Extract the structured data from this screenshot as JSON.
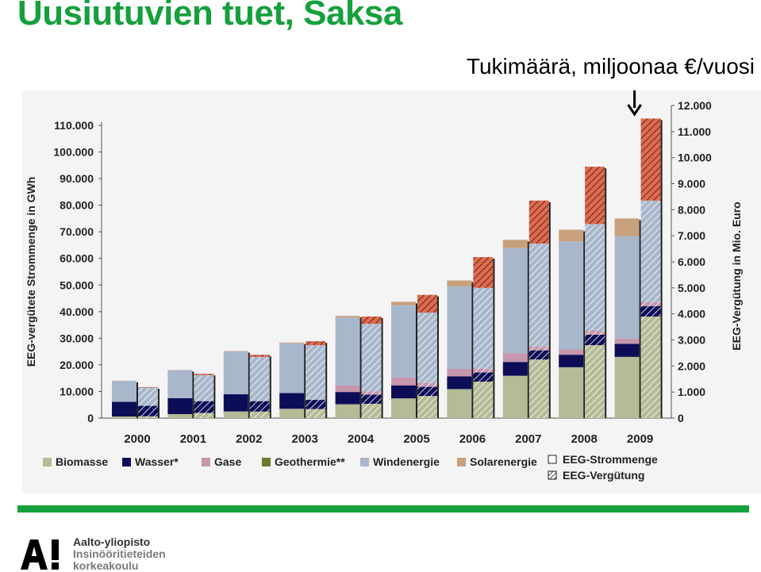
{
  "header": {
    "title": "Uusiutuvien tuet, Saksa",
    "subtitle": "Tukimäärä, miljoonaa €/vuosi"
  },
  "footer": {
    "brand_line1": "Aalto-yliopisto",
    "brand_line2": "Insinööritieteiden",
    "brand_line3": "korkeakoulu",
    "logo_text": "A!"
  },
  "colors": {
    "accent_green": "#15a03c",
    "Biomasse": "#b4bb96",
    "Wasser*": "#0d0d57",
    "Gase": "#c596ac",
    "Geothermie**": "#6b7a2c",
    "Windenergie": "#a9b7cc",
    "Solarenergie": "#c9a07c",
    "Solar_hatch": "#e06a4e"
  },
  "chart_data": {
    "type": "bar",
    "categories": [
      "2000",
      "2001",
      "2002",
      "2003",
      "2004",
      "2005",
      "2006",
      "2007",
      "2008",
      "2009"
    ],
    "ylabel_left": "EEG-vergütete Strommenge in GWh",
    "ylabel_right": "EEG-Vergütung in Mio. Euro",
    "ylim_left": [
      0,
      110000
    ],
    "ylim_right": [
      0,
      12000
    ],
    "yticks_left": [
      "0",
      "10.000",
      "20.000",
      "30.000",
      "40.000",
      "50.000",
      "60.000",
      "70.000",
      "80.000",
      "90.000",
      "100.000",
      "110.000"
    ],
    "yticks_right": [
      "0",
      "1.000",
      "2.000",
      "3.000",
      "4.000",
      "5.000",
      "6.000",
      "7.000",
      "8.000",
      "9.000",
      "10.000",
      "11.000",
      "12.000"
    ],
    "bar_types": [
      "EEG-Strommenge",
      "EEG-Vergütung"
    ],
    "series_order": [
      "Biomasse",
      "Wasser*",
      "Gase",
      "Geothermie**",
      "Windenergie",
      "Solarenergie"
    ],
    "strommenge_gwh": {
      "Biomasse": [
        600,
        1500,
        2500,
        3500,
        5200,
        7400,
        10900,
        15900,
        19100,
        23000
      ],
      "Wasser*": [
        5500,
        6000,
        6500,
        5900,
        4600,
        4900,
        4800,
        5200,
        4700,
        4900
      ],
      "Gase": [
        0,
        0,
        0,
        0,
        2500,
        2900,
        2800,
        3300,
        2000,
        2000
      ],
      "Geothermie**": [
        0,
        0,
        0,
        0,
        0,
        0,
        0,
        0,
        0,
        0
      ],
      "Windenergie": [
        7900,
        10500,
        16000,
        18700,
        25500,
        27200,
        31000,
        39500,
        40600,
        38500
      ],
      "Solarenergie": [
        50,
        100,
        200,
        300,
        600,
        1300,
        2200,
        3100,
        4400,
        6600
      ]
    },
    "verguetung_mio_eur": {
      "Biomasse": [
        70,
        200,
        250,
        350,
        550,
        850,
        1400,
        2250,
        2800,
        3900
      ],
      "Wasser*": [
        400,
        450,
        400,
        350,
        350,
        350,
        350,
        350,
        400,
        400
      ],
      "Gase": [
        0,
        0,
        0,
        0,
        120,
        150,
        150,
        150,
        150,
        150
      ],
      "Geothermie**": [
        0,
        0,
        0,
        0,
        0,
        0,
        0,
        0,
        0,
        0
      ],
      "Windenergie": [
        700,
        1000,
        1700,
        2100,
        2600,
        2700,
        3100,
        3950,
        4100,
        3900
      ],
      "Solarenergie": [
        20,
        50,
        80,
        150,
        280,
        680,
        1180,
        1650,
        2200,
        3150
      ]
    },
    "legend": [
      {
        "name": "Biomasse",
        "key": "Biomasse"
      },
      {
        "name": "Wasser*",
        "key": "Wasser*"
      },
      {
        "name": "Gase",
        "key": "Gase"
      },
      {
        "name": "Geothermie**",
        "key": "Geothermie**"
      },
      {
        "name": "Windenergie",
        "key": "Windenergie"
      },
      {
        "name": "Solarenergie",
        "key": "Solarenergie"
      }
    ],
    "legend_types": [
      {
        "name": "EEG-Strommenge",
        "style": "solid"
      },
      {
        "name": "EEG-Vergütung",
        "style": "hatched"
      }
    ],
    "annotation": "arrow pointing to 2009 EEG-Vergütung bar",
    "grid": false,
    "legend_position": "bottom"
  }
}
